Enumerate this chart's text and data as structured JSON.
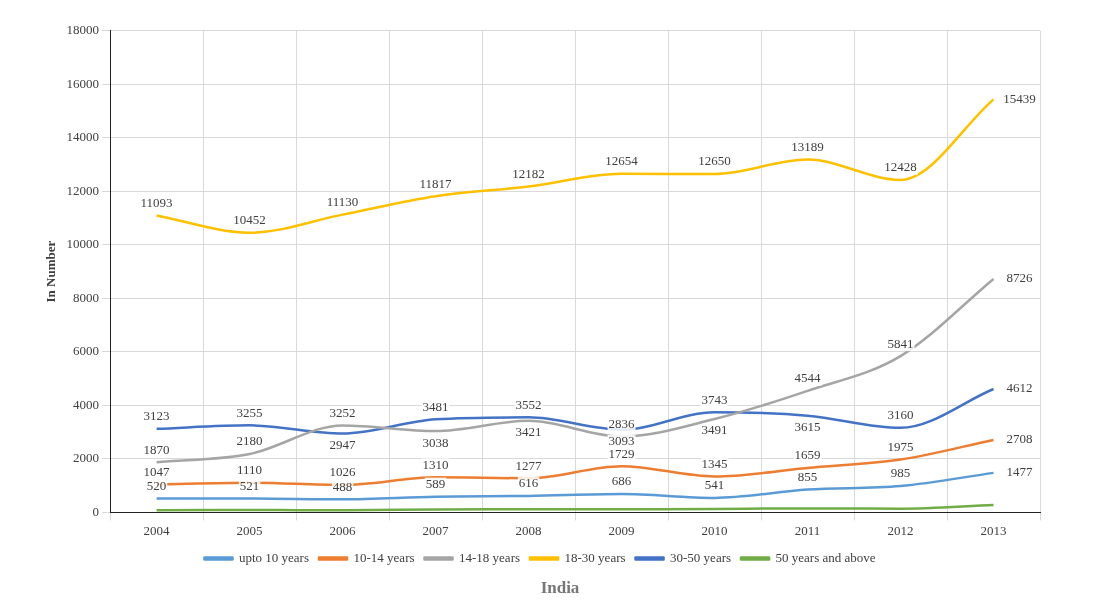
{
  "chart_data": {
    "type": "line",
    "xlabel": "India",
    "ylabel": "In Number",
    "categories": [
      "2004",
      "2005",
      "2006",
      "2007",
      "2008",
      "2009",
      "2010",
      "2011",
      "2012",
      "2013"
    ],
    "ylim": [
      0,
      18000
    ],
    "yticks": [
      0,
      2000,
      4000,
      6000,
      8000,
      10000,
      12000,
      14000,
      16000,
      18000
    ],
    "grid": true,
    "legend": "bottom",
    "marker": "none",
    "series": [
      {
        "name": "upto 10 years",
        "color": "#5b9bd5",
        "values": [
          520,
          521,
          488,
          589,
          616,
          686,
          541,
          855,
          985,
          1477
        ],
        "value_labels": [
          "520",
          "521",
          "488",
          "589",
          "616",
          "686",
          "541",
          "855",
          "985",
          "1477"
        ]
      },
      {
        "name": "10-14 years",
        "color": "#ed7d31",
        "values": [
          1047,
          1110,
          1026,
          1310,
          1277,
          1729,
          1345,
          1659,
          1975,
          2708
        ],
        "value_labels": [
          "1047",
          "1110",
          "1026",
          "1310",
          "1277",
          "1729",
          "1345",
          "1659",
          "1975",
          "2708"
        ]
      },
      {
        "name": "14-18 years",
        "color": "#a5a5a5",
        "values": [
          1870,
          2180,
          3252,
          3038,
          3421,
          2836,
          3491,
          4544,
          5841,
          8726
        ],
        "value_labels": [
          "1870",
          "2180",
          "3252",
          "3038",
          "3421",
          "2836",
          "3491",
          "4544",
          "5841",
          "8726"
        ]
      },
      {
        "name": "18-30 years",
        "color": "#ffc000",
        "values": [
          11093,
          10452,
          11130,
          11817,
          12182,
          12654,
          12650,
          13189,
          12428,
          15439
        ],
        "value_labels": [
          "11093",
          "10452",
          "11130",
          "11817",
          "12182",
          "12654",
          "12650",
          "13189",
          "12428",
          "15439"
        ]
      },
      {
        "name": "30-50 years",
        "color": "#4472c4",
        "values": [
          3123,
          3255,
          2947,
          3481,
          3552,
          3093,
          3743,
          3615,
          3160,
          4612
        ],
        "value_labels": [
          "3123",
          "3255",
          "2947",
          "3481",
          "3552",
          "3093",
          "3743",
          "3615",
          "3160",
          "4612"
        ]
      },
      {
        "name": "50 years and above",
        "color": "#70ad47",
        "values": [
          80,
          90,
          80,
          110,
          120,
          120,
          130,
          150,
          140,
          280
        ]
      }
    ]
  }
}
